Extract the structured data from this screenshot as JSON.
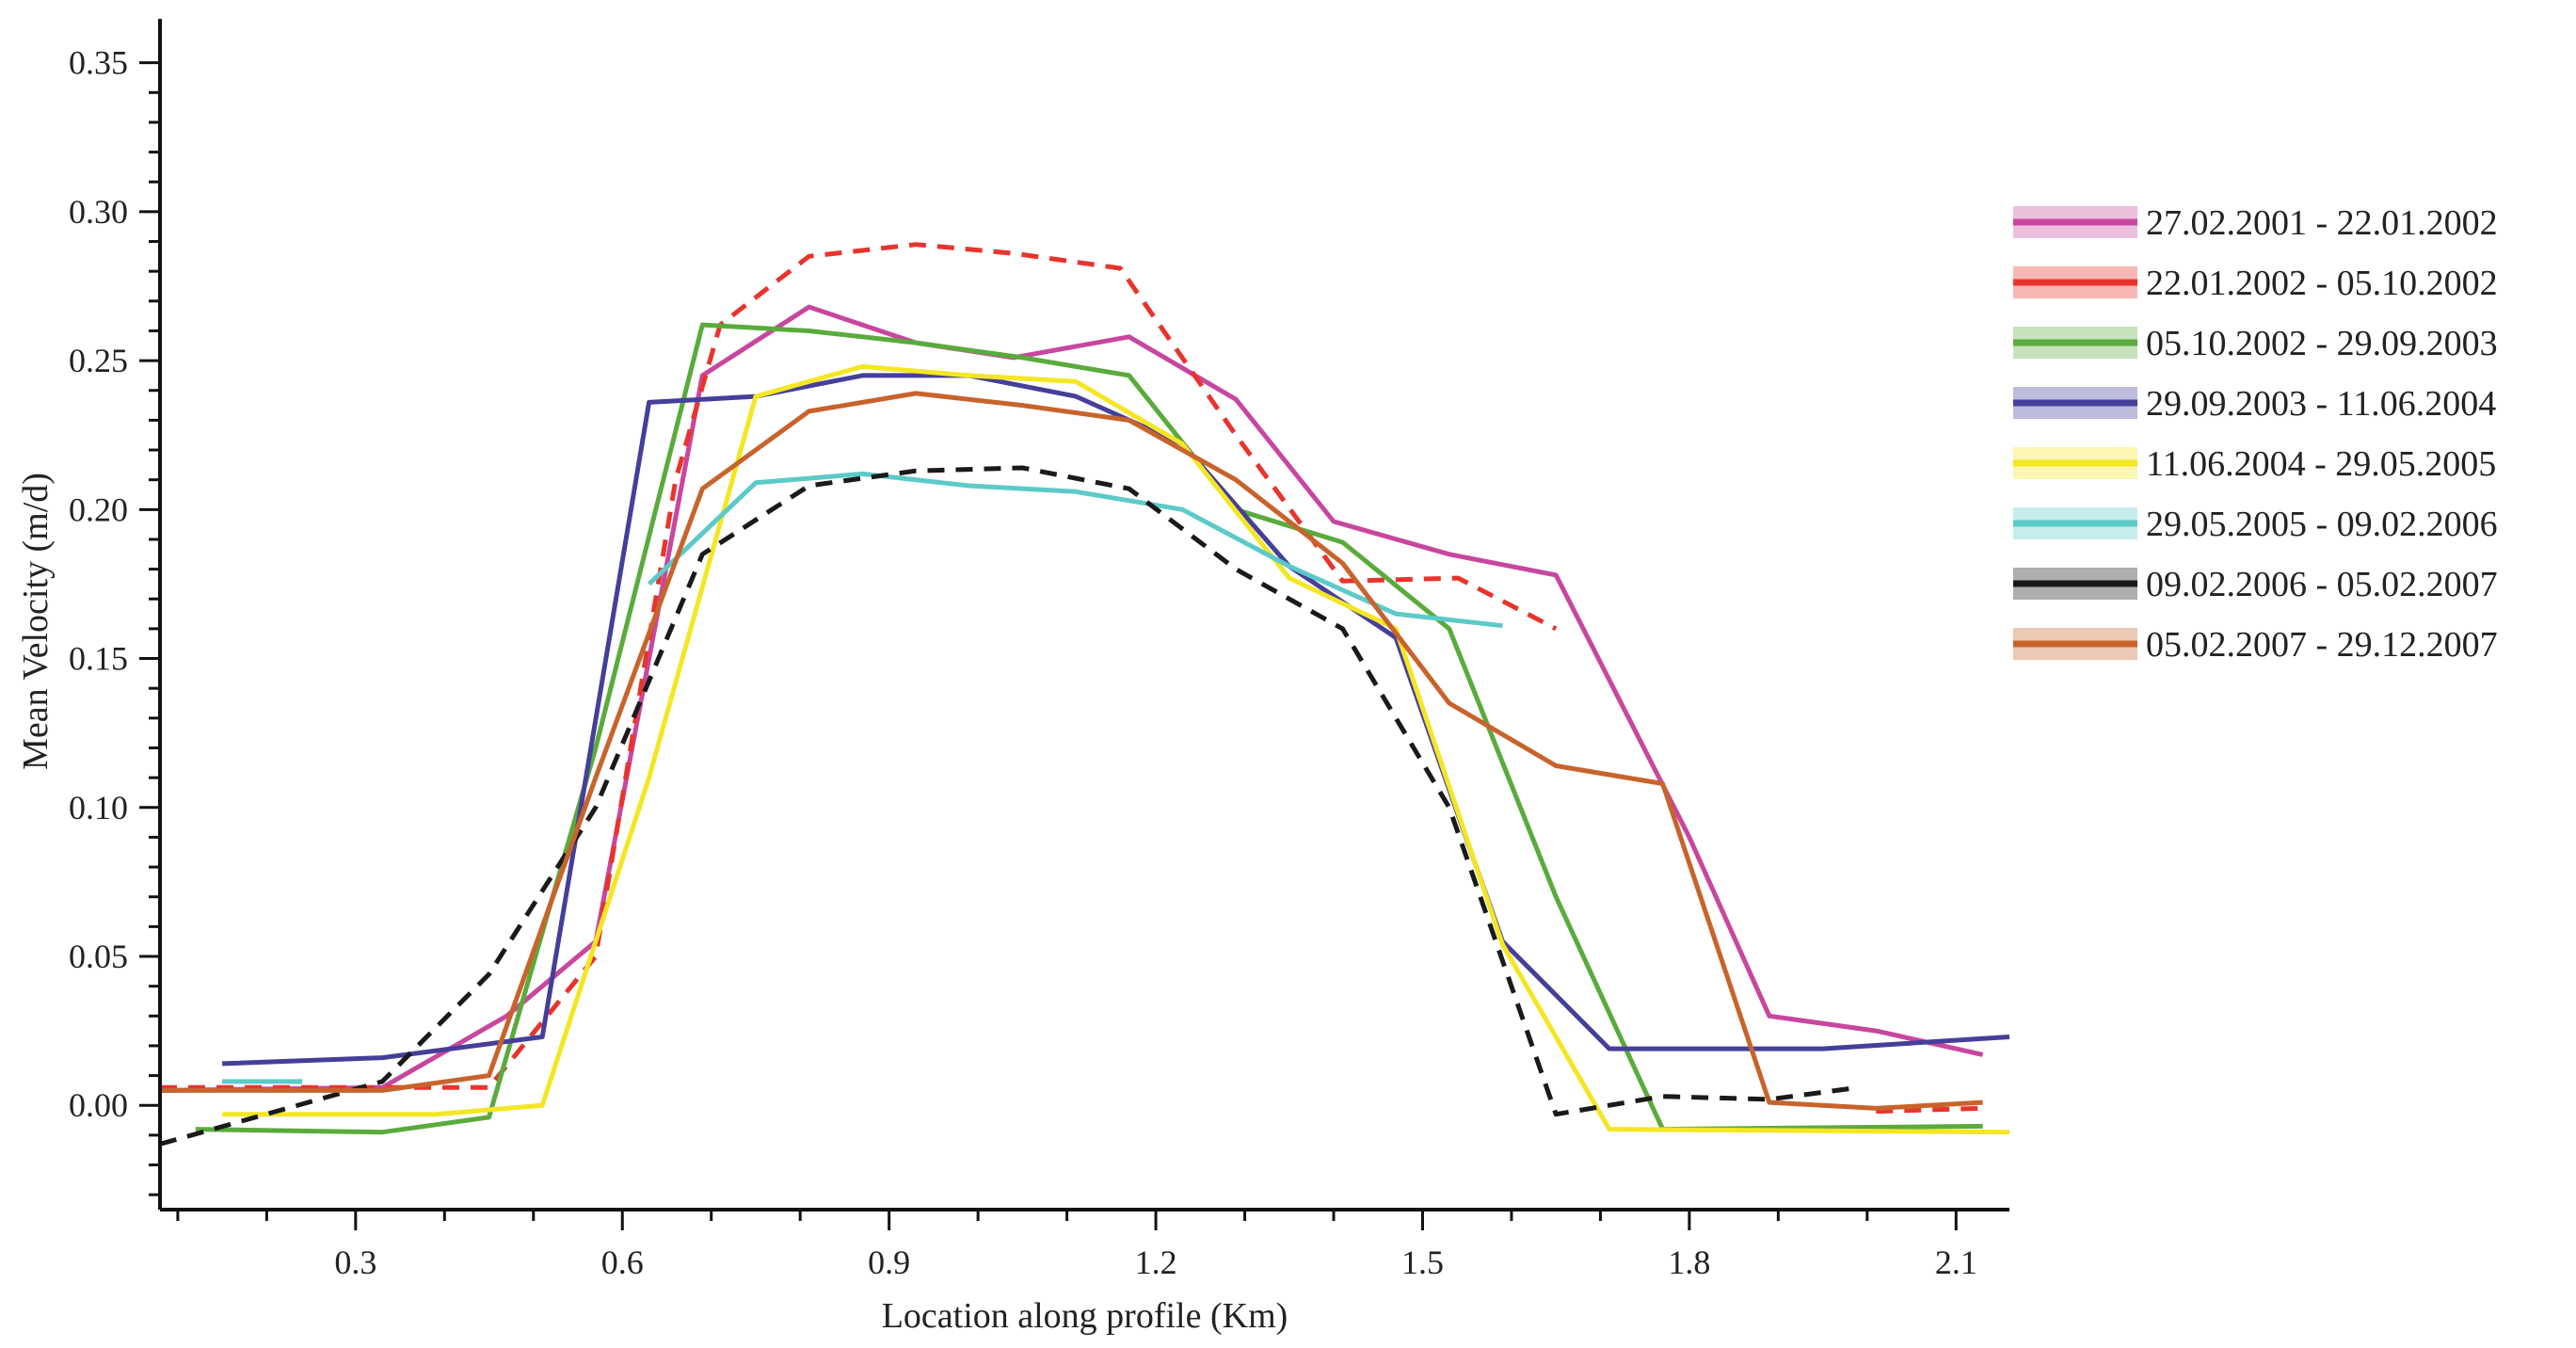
{
  "chart_data": {
    "type": "line",
    "xlabel": "Location along profile (Km)",
    "ylabel": "Mean Velocity (m/d)",
    "xlim": [
      0.08,
      2.16
    ],
    "ylim": [
      -0.035,
      0.36
    ],
    "x_ticks": [
      0.3,
      0.6,
      0.9,
      1.2,
      1.5,
      1.8,
      2.1
    ],
    "x_tick_labels": [
      "0.3",
      "0.6",
      "0.9",
      "1.2",
      "1.5",
      "1.8",
      "2.1"
    ],
    "y_ticks": [
      0.0,
      0.05,
      0.1,
      0.15,
      0.2,
      0.25,
      0.3,
      0.35
    ],
    "y_tick_labels": [
      "0.00",
      "0.05",
      "0.10",
      "0.15",
      "0.20",
      "0.25",
      "0.30",
      "0.35"
    ],
    "legend_position": "right",
    "series": [
      {
        "name": "27.02.2001 - 22.01.2002",
        "color": "#c8479e",
        "dashed": false,
        "points": [
          [
            0.08,
            0.005
          ],
          [
            0.33,
            0.006
          ],
          [
            0.47,
            0.03
          ],
          [
            0.57,
            0.055
          ],
          [
            0.63,
            0.15
          ],
          [
            0.69,
            0.245
          ],
          [
            0.81,
            0.268
          ],
          [
            0.93,
            0.256
          ],
          [
            1.04,
            0.251
          ],
          [
            1.17,
            0.258
          ],
          [
            1.29,
            0.237
          ],
          [
            1.4,
            0.196
          ],
          [
            1.53,
            0.185
          ],
          [
            1.65,
            0.178
          ],
          [
            1.8,
            0.09
          ],
          [
            1.89,
            0.03
          ],
          [
            2.01,
            0.025
          ],
          [
            2.13,
            0.017
          ]
        ]
      },
      {
        "name": "22.01.2002 - 05.10.2002",
        "color": "#e8342c",
        "dashed": true,
        "points": [
          [
            0.08,
            0.006
          ],
          [
            0.45,
            0.006
          ],
          [
            0.57,
            0.05
          ],
          [
            0.66,
            0.21
          ],
          [
            0.71,
            0.262
          ],
          [
            0.81,
            0.285
          ],
          [
            0.93,
            0.289
          ],
          [
            1.04,
            0.286
          ],
          [
            1.16,
            0.281
          ],
          [
            1.29,
            0.225
          ],
          [
            1.41,
            0.176
          ],
          [
            1.54,
            0.177
          ],
          [
            1.65,
            0.16
          ]
        ]
      },
      {
        "name": "",
        "color": "#e8342c",
        "dashed": true,
        "points": [
          [
            2.01,
            -0.002
          ],
          [
            2.13,
            -0.001
          ]
        ]
      },
      {
        "name": "05.10.2002 - 29.09.2003",
        "color": "#5aab3c",
        "dashed": false,
        "points": [
          [
            0.12,
            -0.008
          ],
          [
            0.33,
            -0.009
          ],
          [
            0.45,
            -0.004
          ],
          [
            0.57,
            0.12
          ],
          [
            0.69,
            0.262
          ],
          [
            0.81,
            0.26
          ],
          [
            0.93,
            0.256
          ],
          [
            1.05,
            0.251
          ],
          [
            1.17,
            0.245
          ],
          [
            1.29,
            0.2
          ],
          [
            1.41,
            0.189
          ],
          [
            1.53,
            0.16
          ],
          [
            1.65,
            0.07
          ],
          [
            1.77,
            -0.008
          ],
          [
            2.13,
            -0.007
          ]
        ]
      },
      {
        "name": "29.09.2003 - 11.06.2004",
        "color": "#453f9a",
        "dashed": false,
        "points": [
          [
            0.15,
            0.014
          ],
          [
            0.33,
            0.016
          ],
          [
            0.51,
            0.023
          ],
          [
            0.63,
            0.236
          ],
          [
            0.75,
            0.238
          ],
          [
            0.87,
            0.245
          ],
          [
            0.99,
            0.245
          ],
          [
            1.11,
            0.238
          ],
          [
            1.23,
            0.222
          ],
          [
            1.35,
            0.181
          ],
          [
            1.47,
            0.157
          ],
          [
            1.59,
            0.055
          ],
          [
            1.71,
            0.019
          ],
          [
            1.95,
            0.019
          ],
          [
            2.16,
            0.023
          ]
        ]
      },
      {
        "name": "11.06.2004 - 29.05.2005",
        "color": "#f4e623",
        "dashed": false,
        "points": [
          [
            0.15,
            -0.003
          ],
          [
            0.39,
            -0.003
          ],
          [
            0.51,
            0.0
          ],
          [
            0.63,
            0.11
          ],
          [
            0.75,
            0.238
          ],
          [
            0.87,
            0.248
          ],
          [
            0.99,
            0.245
          ],
          [
            1.11,
            0.243
          ],
          [
            1.23,
            0.222
          ],
          [
            1.35,
            0.177
          ],
          [
            1.47,
            0.16
          ],
          [
            1.59,
            0.054
          ],
          [
            1.71,
            -0.008
          ],
          [
            2.16,
            -0.009
          ]
        ]
      },
      {
        "name": "29.05.2005 - 09.02.2006",
        "color": "#5ccac8",
        "dashed": false,
        "points": [
          [
            0.63,
            0.175
          ],
          [
            0.75,
            0.209
          ],
          [
            0.87,
            0.212
          ],
          [
            0.99,
            0.208
          ],
          [
            1.11,
            0.206
          ],
          [
            1.23,
            0.2
          ],
          [
            1.35,
            0.181
          ],
          [
            1.47,
            0.165
          ],
          [
            1.59,
            0.161
          ]
        ]
      },
      {
        "name": "",
        "color": "#5ccac8",
        "dashed": false,
        "points": [
          [
            0.15,
            0.008
          ],
          [
            0.24,
            0.008
          ]
        ]
      },
      {
        "name": "09.02.2006 - 05.02.2007",
        "color": "#1a1a1a",
        "dashed": true,
        "points": [
          [
            0.08,
            -0.013
          ],
          [
            0.33,
            0.008
          ],
          [
            0.45,
            0.044
          ],
          [
            0.57,
            0.1
          ],
          [
            0.69,
            0.185
          ],
          [
            0.81,
            0.208
          ],
          [
            0.93,
            0.213
          ],
          [
            1.05,
            0.214
          ],
          [
            1.17,
            0.207
          ],
          [
            1.29,
            0.18
          ],
          [
            1.41,
            0.16
          ],
          [
            1.53,
            0.1
          ],
          [
            1.65,
            -0.003
          ],
          [
            1.77,
            0.003
          ],
          [
            1.89,
            0.002
          ],
          [
            1.99,
            0.006
          ]
        ]
      },
      {
        "name": "05.02.2007 - 29.12.2007",
        "color": "#c8632c",
        "dashed": false,
        "points": [
          [
            0.08,
            0.005
          ],
          [
            0.33,
            0.005
          ],
          [
            0.45,
            0.01
          ],
          [
            0.57,
            0.11
          ],
          [
            0.69,
            0.207
          ],
          [
            0.81,
            0.233
          ],
          [
            0.93,
            0.239
          ],
          [
            1.05,
            0.235
          ],
          [
            1.17,
            0.23
          ],
          [
            1.29,
            0.21
          ],
          [
            1.41,
            0.182
          ],
          [
            1.53,
            0.135
          ],
          [
            1.65,
            0.114
          ],
          [
            1.77,
            0.108
          ],
          [
            1.89,
            0.001
          ],
          [
            2.01,
            -0.001
          ],
          [
            2.13,
            0.001
          ]
        ]
      }
    ]
  }
}
